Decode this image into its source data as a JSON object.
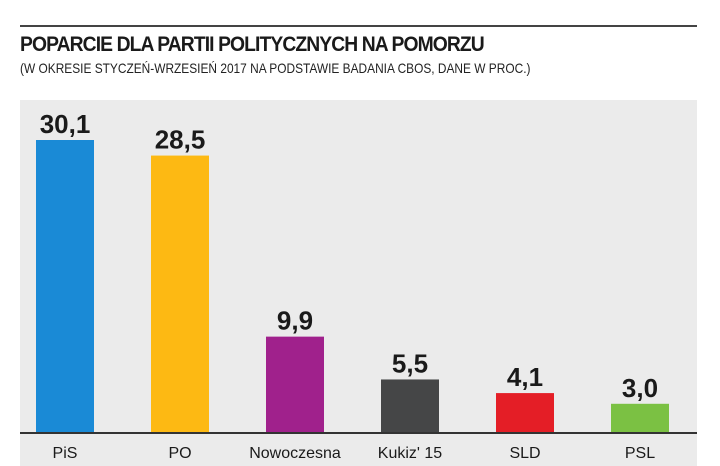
{
  "chart_data": {
    "type": "bar",
    "title": "POPARCIE DLA PARTII POLITYCZNYCH NA POMORZU",
    "subtitle": "(W OKRESIE STYCZEŃ-WRZESIEŃ 2017 NA PODSTAWIE BADANIA CBOS, DANE W PROC.)",
    "categories": [
      "PiS",
      "PO",
      "Nowoczesna",
      "Kukiz' 15",
      "SLD",
      "PSL"
    ],
    "values": [
      30.1,
      28.5,
      9.9,
      5.5,
      4.1,
      3.0
    ],
    "value_labels": [
      "30,1",
      "28,5",
      "9,9",
      "5,5",
      "4,1",
      "3,0"
    ],
    "colors": [
      "#1a8ad6",
      "#fdb913",
      "#a0218c",
      "#454647",
      "#e41e26",
      "#7bc143"
    ],
    "grid": false,
    "legend": "none",
    "ylim": [
      0,
      30.1
    ]
  }
}
